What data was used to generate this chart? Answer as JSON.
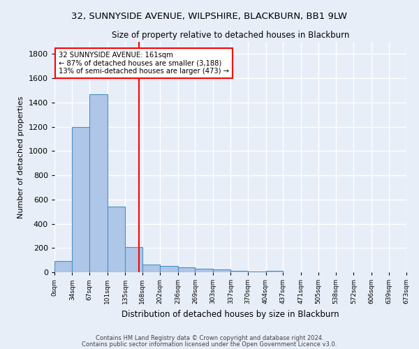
{
  "title": "32, SUNNYSIDE AVENUE, WILPSHIRE, BLACKBURN, BB1 9LW",
  "subtitle": "Size of property relative to detached houses in Blackburn",
  "xlabel": "Distribution of detached houses by size in Blackburn",
  "ylabel": "Number of detached properties",
  "bar_edges": [
    0,
    34,
    67,
    101,
    135,
    168,
    202,
    236,
    269,
    303,
    337,
    370,
    404,
    437,
    471,
    505,
    538,
    572,
    606,
    639,
    673
  ],
  "bar_heights": [
    90,
    1200,
    1470,
    540,
    205,
    65,
    50,
    40,
    28,
    22,
    10,
    5,
    12,
    0,
    0,
    0,
    0,
    0,
    0,
    0
  ],
  "bar_color": "#aec6e8",
  "bar_edge_color": "#4a90c4",
  "property_size": 161,
  "annotation_text": "32 SUNNYSIDE AVENUE: 161sqm\n← 87% of detached houses are smaller (3,188)\n13% of semi-detached houses are larger (473) →",
  "annotation_box_color": "white",
  "annotation_box_edge_color": "red",
  "vline_color": "red",
  "vline_x": 161,
  "ylim": [
    0,
    1900
  ],
  "background_color": "#e8eef8",
  "grid_color": "#ffffff",
  "footnote1": "Contains HM Land Registry data © Crown copyright and database right 2024.",
  "footnote2": "Contains public sector information licensed under the Open Government Licence v3.0."
}
